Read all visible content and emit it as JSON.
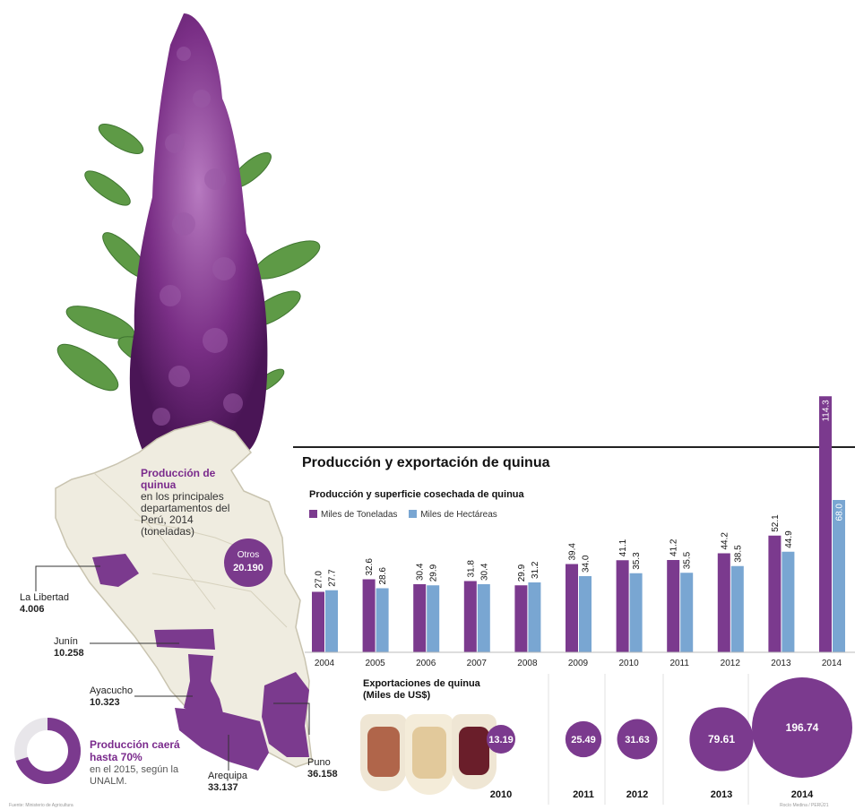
{
  "title": "Producción y exportación de quinua",
  "map": {
    "title_em": "Producción de quinua",
    "title_rest": "en los principales departamentos del Perú, 2014",
    "unit": "(toneladas)",
    "regions": [
      {
        "name": "La Libertad",
        "value": "4.006"
      },
      {
        "name": "Junín",
        "value": "10.258"
      },
      {
        "name": "Ayacucho",
        "value": "10.323"
      },
      {
        "name": "Puno",
        "value": "36.158"
      },
      {
        "name": "Arequipa",
        "value": "33.137"
      }
    ],
    "otros": {
      "name": "Otros",
      "value": "20.190"
    }
  },
  "forecast": {
    "em": "Producción caerá hasta 70%",
    "rest": "en el 2015, según la UNALM."
  },
  "source": "Fuente: Ministerio de Agricultura",
  "credit": "Rocío Medina / PERÚ21",
  "colors": {
    "purple": "#7b3a8e",
    "blue": "#79a6d2"
  },
  "chart_data": [
    {
      "type": "bar",
      "title": "Producción y superficie cosechada de quinua",
      "categories": [
        "2004",
        "2005",
        "2006",
        "2007",
        "2008",
        "2009",
        "2010",
        "2011",
        "2012",
        "2013",
        "2014"
      ],
      "series": [
        {
          "name": "Miles de Toneladas",
          "values": [
            27.0,
            32.6,
            30.4,
            31.8,
            29.9,
            39.4,
            41.1,
            41.2,
            44.2,
            52.1,
            114.3
          ]
        },
        {
          "name": "Miles de Hectáreas",
          "values": [
            27.7,
            28.6,
            29.9,
            30.4,
            31.2,
            34.0,
            35.3,
            35.5,
            38.5,
            44.9,
            68.0
          ]
        }
      ],
      "value_labels": [
        [
          "27.0",
          "32.6",
          "30.4",
          "31.8",
          "29.9",
          "39.4",
          "41.1",
          "41.2",
          "44.2",
          "52.1",
          "114.3"
        ],
        [
          "27.7",
          "28.6",
          "29.9",
          "30.4",
          "31.2",
          "34.0",
          "35.3",
          "35.5",
          "38.5",
          "44.9",
          "68.0"
        ]
      ]
    },
    {
      "type": "bubble",
      "title": "Exportaciones de quinua",
      "unit": "(Miles de US$)",
      "categories": [
        "2010",
        "2011",
        "2012",
        "2013",
        "2014"
      ],
      "values": [
        13.19,
        25.49,
        31.63,
        79.61,
        196.74
      ],
      "value_labels": [
        "13.19",
        "25.49",
        "31.63",
        "79.61",
        "196.74"
      ]
    }
  ]
}
